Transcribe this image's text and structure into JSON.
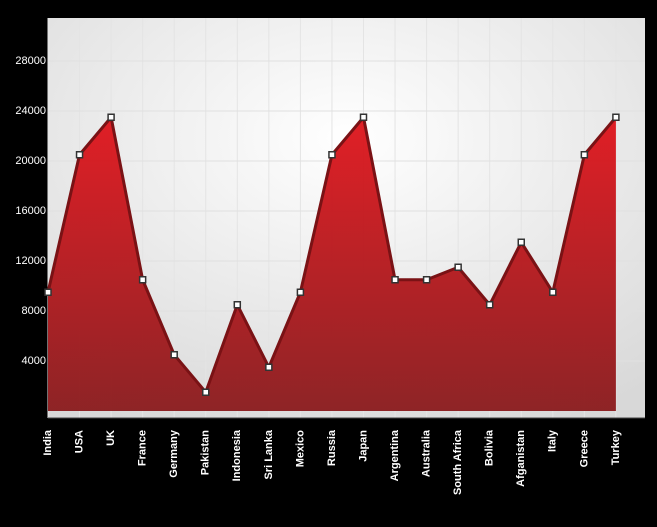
{
  "chart_data": {
    "type": "area",
    "categories": [
      "India",
      "USA",
      "UK",
      "France",
      "Germany",
      "Pakistan",
      "Indonesia",
      "Sri Lanka",
      "Mexico",
      "Russia",
      "Japan",
      "Argentina",
      "Australia",
      "South Africa",
      "Bolivia",
      "Afganistan",
      "Italy",
      "Greece",
      "Turkey"
    ],
    "values": [
      9500,
      20500,
      23500,
      10500,
      4500,
      1500,
      8500,
      3500,
      9500,
      20500,
      23500,
      10500,
      10500,
      11500,
      8500,
      13500,
      9500,
      20500,
      23500
    ],
    "color": "#c0141b",
    "ylim": [
      -560,
      31440
    ],
    "yticks": [
      4000,
      8000,
      12000,
      16000,
      20000,
      24000,
      28000
    ],
    "grid": true
  }
}
